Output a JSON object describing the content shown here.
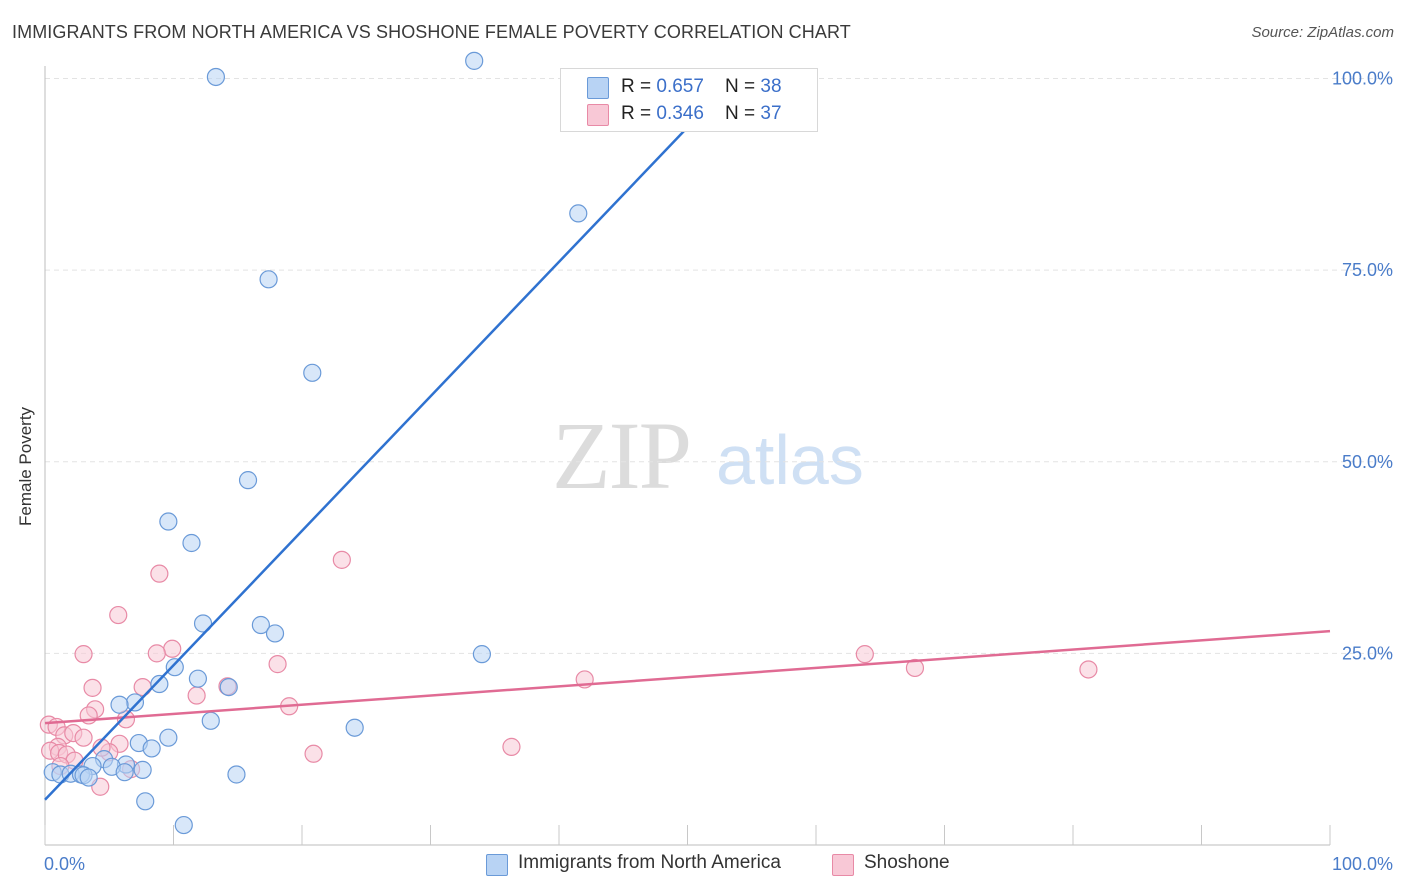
{
  "title": "IMMIGRANTS FROM NORTH AMERICA VS SHOSHONE FEMALE POVERTY CORRELATION CHART",
  "source": "Source: ZipAtlas.com",
  "watermark": {
    "zip": "ZIP",
    "atlas": "atlas"
  },
  "legend": {
    "blue": {
      "r_label": "R = ",
      "r_value": "0.657",
      "n_label": "N = ",
      "n_value": "38"
    },
    "pink": {
      "r_label": "R = ",
      "r_value": "0.346",
      "n_label": "N = ",
      "n_value": "37"
    }
  },
  "bottom_legend": {
    "blue_label": "Immigrants from North America",
    "pink_label": "Shoshone"
  },
  "colors": {
    "blue_fill": "#b8d3f4",
    "blue_stroke": "#6a9ad8",
    "blue_line": "#2f72d0",
    "pink_fill": "#f8c8d6",
    "pink_stroke": "#e88aa6",
    "pink_line": "#e06b93",
    "axis_text": "#4a7cc9",
    "grid": "#e3e3e3"
  },
  "chart_data": {
    "type": "scatter",
    "title": "IMMIGRANTS FROM NORTH AMERICA VS SHOSHONE FEMALE POVERTY CORRELATION CHART",
    "xlabel": "",
    "ylabel": "Female Poverty",
    "xlim": [
      0,
      100
    ],
    "ylim": [
      0,
      100
    ],
    "x_tick_labels": [
      "0.0%",
      "100.0%"
    ],
    "y_tick_labels": [
      "25.0%",
      "50.0%",
      "75.0%",
      "100.0%"
    ],
    "y_tick_values": [
      25,
      50,
      75,
      100
    ],
    "grid": true,
    "legend_position": "top-center",
    "series": [
      {
        "name": "Immigrants from North America",
        "color": "#b8d3f4",
        "points": [
          [
            33.4,
            102.3
          ],
          [
            13.3,
            100.2
          ],
          [
            41.5,
            82.4
          ],
          [
            17.4,
            73.8
          ],
          [
            20.8,
            61.6
          ],
          [
            15.8,
            47.6
          ],
          [
            9.6,
            42.2
          ],
          [
            11.4,
            39.4
          ],
          [
            12.3,
            28.9
          ],
          [
            16.8,
            28.7
          ],
          [
            17.9,
            27.6
          ],
          [
            34.0,
            24.9
          ],
          [
            10.1,
            23.2
          ],
          [
            11.9,
            21.7
          ],
          [
            8.9,
            21.0
          ],
          [
            14.3,
            20.6
          ],
          [
            7.0,
            18.6
          ],
          [
            5.8,
            18.3
          ],
          [
            12.9,
            16.2
          ],
          [
            24.1,
            15.3
          ],
          [
            9.6,
            14.0
          ],
          [
            7.3,
            13.3
          ],
          [
            8.3,
            12.6
          ],
          [
            4.6,
            11.2
          ],
          [
            6.3,
            10.5
          ],
          [
            3.7,
            10.3
          ],
          [
            5.2,
            10.2
          ],
          [
            0.6,
            9.5
          ],
          [
            1.2,
            9.2
          ],
          [
            2.0,
            9.3
          ],
          [
            2.8,
            9.2
          ],
          [
            3.0,
            9.1
          ],
          [
            6.2,
            9.5
          ],
          [
            7.6,
            9.8
          ],
          [
            14.9,
            9.2
          ],
          [
            3.4,
            8.8
          ],
          [
            7.8,
            5.7
          ],
          [
            10.8,
            2.6
          ]
        ]
      },
      {
        "name": "Shoshone",
        "color": "#f8c8d6",
        "points": [
          [
            23.1,
            37.2
          ],
          [
            8.9,
            35.4
          ],
          [
            5.7,
            30.0
          ],
          [
            9.9,
            25.6
          ],
          [
            3.0,
            24.9
          ],
          [
            8.7,
            25.0
          ],
          [
            63.8,
            24.9
          ],
          [
            67.7,
            23.1
          ],
          [
            18.1,
            23.6
          ],
          [
            81.2,
            22.9
          ],
          [
            42.0,
            21.6
          ],
          [
            3.7,
            20.5
          ],
          [
            14.2,
            20.7
          ],
          [
            7.6,
            20.6
          ],
          [
            11.8,
            19.5
          ],
          [
            19.0,
            18.1
          ],
          [
            3.9,
            17.7
          ],
          [
            3.4,
            16.9
          ],
          [
            6.3,
            16.4
          ],
          [
            0.3,
            15.7
          ],
          [
            0.9,
            15.4
          ],
          [
            1.5,
            14.3
          ],
          [
            2.2,
            14.6
          ],
          [
            3.0,
            14.0
          ],
          [
            5.8,
            13.2
          ],
          [
            1.0,
            12.8
          ],
          [
            0.4,
            12.3
          ],
          [
            1.1,
            12.0
          ],
          [
            1.7,
            11.8
          ],
          [
            5.0,
            12.1
          ],
          [
            20.9,
            11.9
          ],
          [
            36.3,
            12.8
          ],
          [
            4.4,
            12.7
          ],
          [
            2.3,
            11.0
          ],
          [
            6.7,
            9.9
          ],
          [
            4.3,
            7.6
          ],
          [
            1.2,
            10.3
          ]
        ]
      }
    ],
    "trendlines": [
      {
        "series": "Immigrants from North America",
        "from": [
          0,
          5.9
        ],
        "to": [
          50.5,
          94.5
        ]
      },
      {
        "series": "Shoshone",
        "from": [
          0,
          15.9
        ],
        "to": [
          100,
          27.9
        ]
      }
    ]
  }
}
